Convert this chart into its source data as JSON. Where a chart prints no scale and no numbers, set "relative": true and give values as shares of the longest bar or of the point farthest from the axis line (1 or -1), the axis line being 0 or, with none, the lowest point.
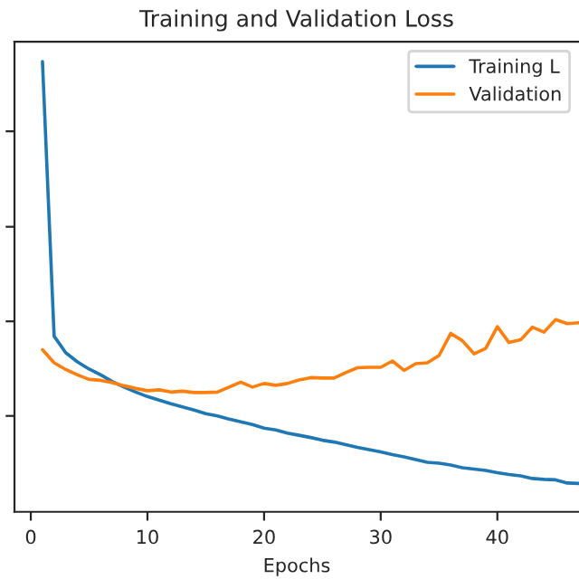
{
  "chart_data": {
    "type": "line",
    "title": "Training and Validation Loss",
    "xlabel": "Epochs",
    "relative": true,
    "xlim": [
      -1.4,
      47
    ],
    "xticks": [
      0,
      10,
      20,
      30,
      40
    ],
    "tick_labels": "x",
    "legend": "top right",
    "grid": false,
    "x": [
      1,
      2,
      3,
      4,
      5,
      6,
      7,
      8,
      9,
      10,
      11,
      12,
      13,
      14,
      15,
      16,
      17,
      18,
      19,
      20,
      21,
      22,
      23,
      24,
      25,
      26,
      27,
      28,
      29,
      30,
      31,
      32,
      33,
      34,
      35,
      36,
      37,
      38,
      39,
      40,
      41,
      42,
      43,
      44,
      45,
      46,
      47
    ],
    "series": [
      {
        "name": "Training L",
        "color": "#1f77b4",
        "values": [
          1.0,
          0.39,
          0.353,
          0.333,
          0.317,
          0.304,
          0.289,
          0.277,
          0.266,
          0.256,
          0.248,
          0.24,
          0.233,
          0.226,
          0.218,
          0.213,
          0.206,
          0.2,
          0.194,
          0.186,
          0.182,
          0.175,
          0.17,
          0.165,
          0.159,
          0.155,
          0.149,
          0.143,
          0.138,
          0.133,
          0.127,
          0.122,
          0.116,
          0.11,
          0.108,
          0.104,
          0.098,
          0.095,
          0.092,
          0.087,
          0.083,
          0.08,
          0.074,
          0.072,
          0.071,
          0.064,
          0.063
        ]
      },
      {
        "name": "Validation",
        "color": "#ff7f0e",
        "values": [
          0.36,
          0.331,
          0.316,
          0.304,
          0.294,
          0.292,
          0.287,
          0.28,
          0.274,
          0.269,
          0.271,
          0.266,
          0.268,
          0.265,
          0.265,
          0.266,
          0.277,
          0.288,
          0.277,
          0.285,
          0.281,
          0.285,
          0.293,
          0.298,
          0.297,
          0.297,
          0.309,
          0.32,
          0.321,
          0.321,
          0.335,
          0.314,
          0.329,
          0.331,
          0.347,
          0.396,
          0.38,
          0.351,
          0.363,
          0.411,
          0.376,
          0.382,
          0.41,
          0.399,
          0.427,
          0.418,
          0.42
        ]
      }
    ]
  }
}
